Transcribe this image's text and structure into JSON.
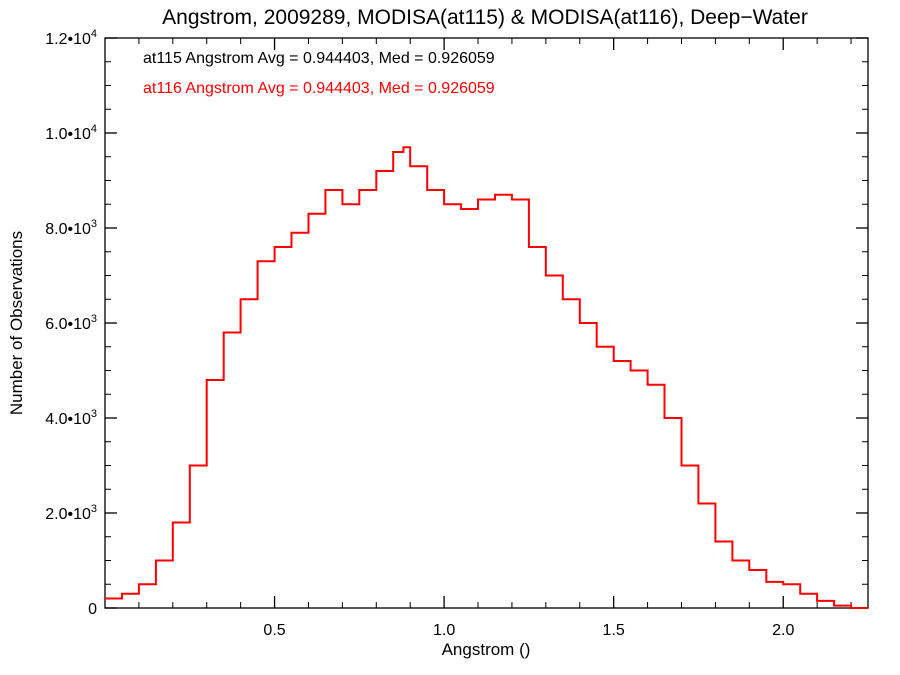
{
  "chart_data": {
    "type": "line",
    "title": "Angstrom, 2009289, MODISA(at115) & MODISA(at116), Deep−Water",
    "xlabel": "Angstrom ()",
    "ylabel": "Number of Observations",
    "xlim": [
      0.0,
      2.25
    ],
    "ylim": [
      0,
      12000
    ],
    "x_ticks": [
      {
        "value": 0.5,
        "label": "0.5"
      },
      {
        "value": 1.0,
        "label": "1.0"
      },
      {
        "value": 1.5,
        "label": "1.5"
      },
      {
        "value": 2.0,
        "label": "2.0"
      }
    ],
    "y_ticks": [
      {
        "value": 0,
        "mantissa": "0",
        "exp": ""
      },
      {
        "value": 2000,
        "mantissa": "2.0•10",
        "exp": "3"
      },
      {
        "value": 4000,
        "mantissa": "4.0•10",
        "exp": "3"
      },
      {
        "value": 6000,
        "mantissa": "6.0•10",
        "exp": "3"
      },
      {
        "value": 8000,
        "mantissa": "8.0•10",
        "exp": "3"
      },
      {
        "value": 10000,
        "mantissa": "1.0•10",
        "exp": "4"
      },
      {
        "value": 12000,
        "mantissa": "1.2•10",
        "exp": "4"
      }
    ],
    "legend_placement": "top-left",
    "annotations": [
      {
        "text": "at115 Angstrom Avg = 0.944403, Med = 0.926059",
        "color": "#000000"
      },
      {
        "text": "at116 Angstrom Avg = 0.944403, Med = 0.926059",
        "color": "#ff0000"
      }
    ],
    "series": [
      {
        "color": "#ff0000",
        "x": [
          0.0,
          0.05,
          0.1,
          0.15,
          0.2,
          0.25,
          0.3,
          0.35,
          0.4,
          0.45,
          0.5,
          0.55,
          0.6,
          0.65,
          0.7,
          0.75,
          0.8,
          0.85,
          0.88,
          0.9,
          0.95,
          1.0,
          1.05,
          1.1,
          1.15,
          1.2,
          1.25,
          1.3,
          1.35,
          1.4,
          1.45,
          1.5,
          1.55,
          1.6,
          1.65,
          1.7,
          1.75,
          1.8,
          1.85,
          1.9,
          1.95,
          2.0,
          2.05,
          2.1,
          2.15,
          2.2,
          2.25
        ],
        "y": [
          200,
          300,
          500,
          1000,
          1800,
          3000,
          4800,
          5800,
          6500,
          7300,
          7600,
          7900,
          8300,
          8800,
          8500,
          8800,
          9200,
          9600,
          9700,
          9300,
          8800,
          8500,
          8400,
          8600,
          8700,
          8600,
          7600,
          7000,
          6500,
          6000,
          5500,
          5200,
          5000,
          4700,
          4000,
          3000,
          2200,
          1400,
          1000,
          800,
          550,
          500,
          300,
          150,
          50,
          0,
          0
        ]
      }
    ]
  }
}
